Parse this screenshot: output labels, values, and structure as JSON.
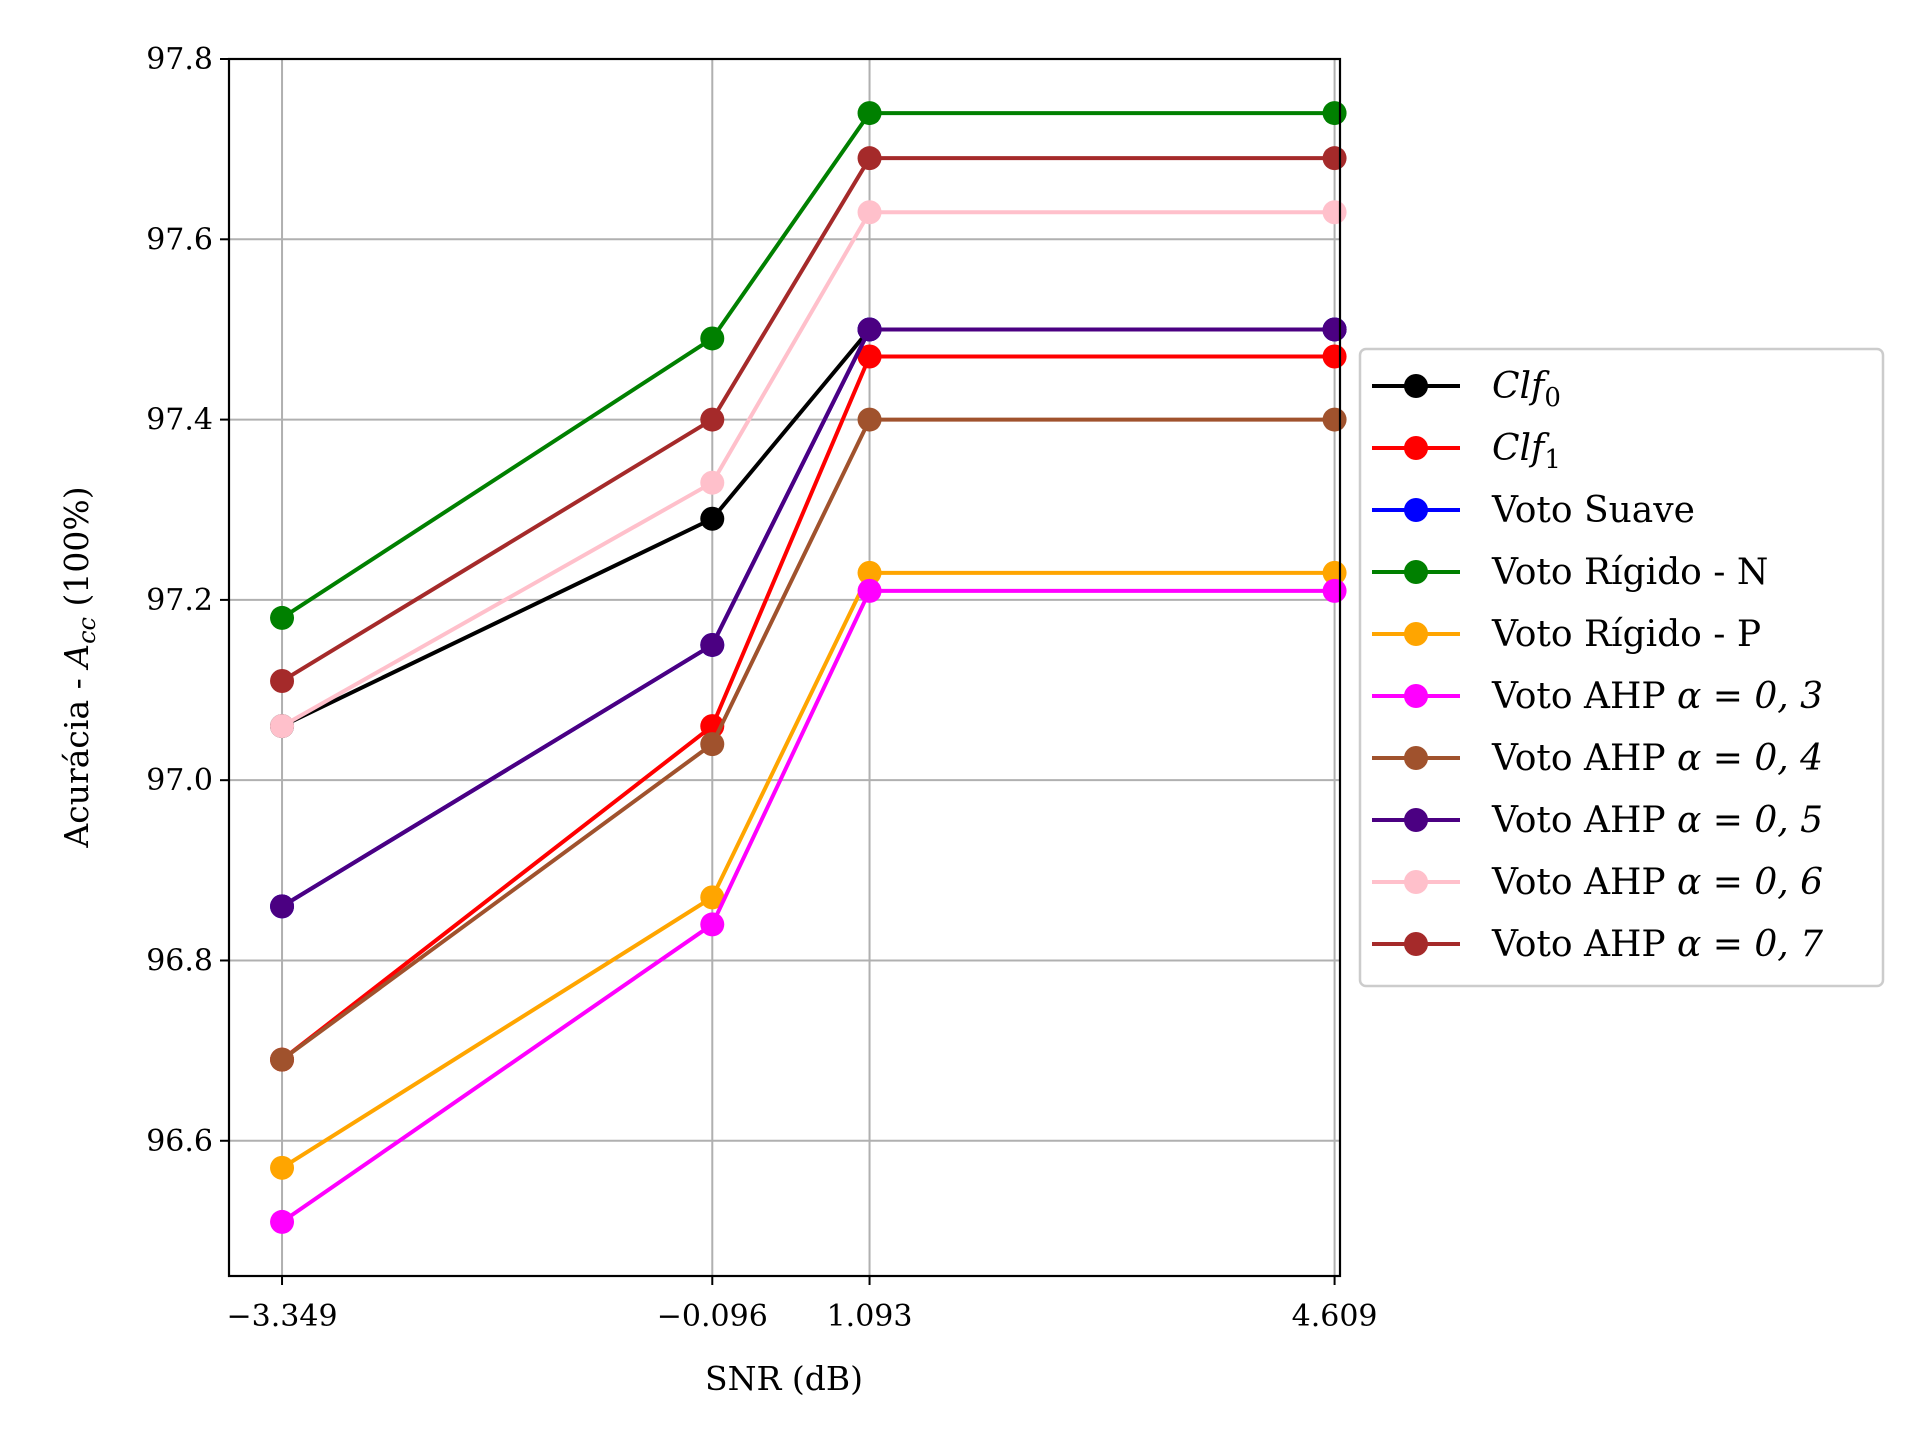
{
  "chart_data": {
    "type": "line",
    "xlabel": "SNR (dB)",
    "ylabel_prefix": "Acurácia - ",
    "ylabel_var": "A",
    "ylabel_sub": "cc",
    "ylabel_suffix": " (100%)",
    "x": [
      -3.349,
      -0.096,
      1.093,
      4.609
    ],
    "xtick_labels": [
      "−3.349",
      "−0.096",
      "1.093",
      "4.609"
    ],
    "yticks": [
      96.6,
      96.8,
      97.0,
      97.2,
      97.4,
      97.6,
      97.8
    ],
    "ytick_labels": [
      "96.6",
      "96.8",
      "97.0",
      "97.2",
      "97.4",
      "97.6",
      "97.8"
    ],
    "xlim": [
      -3.75,
      4.65
    ],
    "ylim": [
      96.45,
      97.8
    ],
    "grid": true,
    "legend_placement": "center-right, outside plot",
    "series": [
      {
        "name": "Clf",
        "name_sub": "0",
        "italic": true,
        "color": "#000000",
        "values": [
          97.06,
          97.29,
          97.5,
          97.5
        ]
      },
      {
        "name": "Clf",
        "name_sub": "1",
        "italic": true,
        "color": "#ff0000",
        "values": [
          96.69,
          97.06,
          97.47,
          97.47
        ]
      },
      {
        "name": "Voto Suave",
        "color": "#0000ff",
        "values": [
          96.86,
          97.15,
          97.5,
          97.5
        ]
      },
      {
        "name": "Voto Rígido - N",
        "color": "#008000",
        "values": [
          97.18,
          97.49,
          97.74,
          97.74
        ]
      },
      {
        "name": "Voto Rígido - P",
        "color": "#ffa500",
        "values": [
          96.57,
          96.87,
          97.23,
          97.23
        ]
      },
      {
        "name": "Voto AHP",
        "alpha_text": "α = 0, 3",
        "color": "#ff00ff",
        "values": [
          96.51,
          96.84,
          97.21,
          97.21
        ]
      },
      {
        "name": "Voto AHP",
        "alpha_text": "α = 0, 4",
        "color": "#a0522d",
        "values": [
          96.69,
          97.04,
          97.4,
          97.4
        ]
      },
      {
        "name": "Voto AHP",
        "alpha_text": "α = 0, 5",
        "color": "#4b0082",
        "values": [
          96.86,
          97.15,
          97.5,
          97.5
        ]
      },
      {
        "name": "Voto AHP",
        "alpha_text": "α = 0, 6",
        "color": "#ffc0cb",
        "values": [
          97.06,
          97.33,
          97.63,
          97.63
        ]
      },
      {
        "name": "Voto AHP",
        "alpha_text": "α = 0, 7",
        "color": "#a52a2a",
        "values": [
          97.11,
          97.4,
          97.69,
          97.69
        ]
      }
    ]
  }
}
